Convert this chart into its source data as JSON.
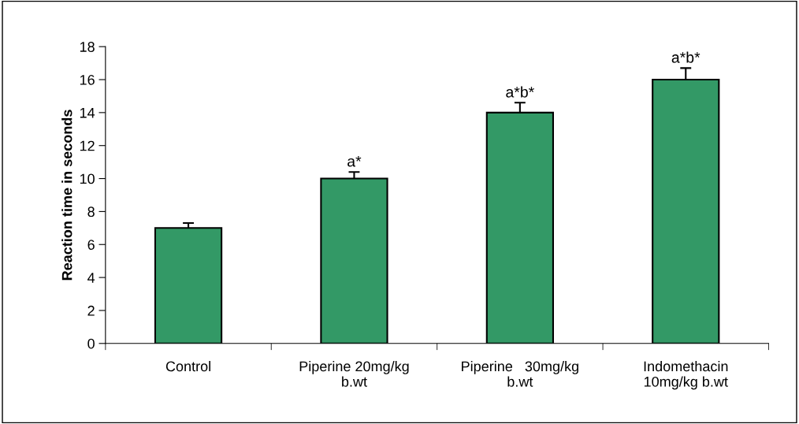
{
  "chart_data": {
    "type": "bar",
    "ylabel": "Reaction time in seconds",
    "categories": [
      "Control",
      "Piperine 20mg/kg\nb.wt",
      "Piperine   30mg/kg\nb.wt",
      "Indomethacin\n10mg/kg b.wt"
    ],
    "values": [
      7,
      10,
      14,
      16
    ],
    "errors": [
      0.3,
      0.4,
      0.6,
      0.7
    ],
    "color": "#339966",
    "ylim": [
      0,
      18
    ],
    "yticks": [
      0,
      2,
      4,
      6,
      8,
      10,
      12,
      14,
      16,
      18
    ],
    "grid": false,
    "legend": false,
    "annotations": [
      {
        "text": "a*",
        "x": "Piperine 20mg/kg\nb.wt",
        "y": 10
      },
      {
        "text": "a*b*",
        "x": "Piperine   30mg/kg\nb.wt",
        "y": 14
      },
      {
        "text": "a*b*",
        "x": "Indomethacin\n10mg/kg b.wt",
        "y": 16
      }
    ]
  }
}
